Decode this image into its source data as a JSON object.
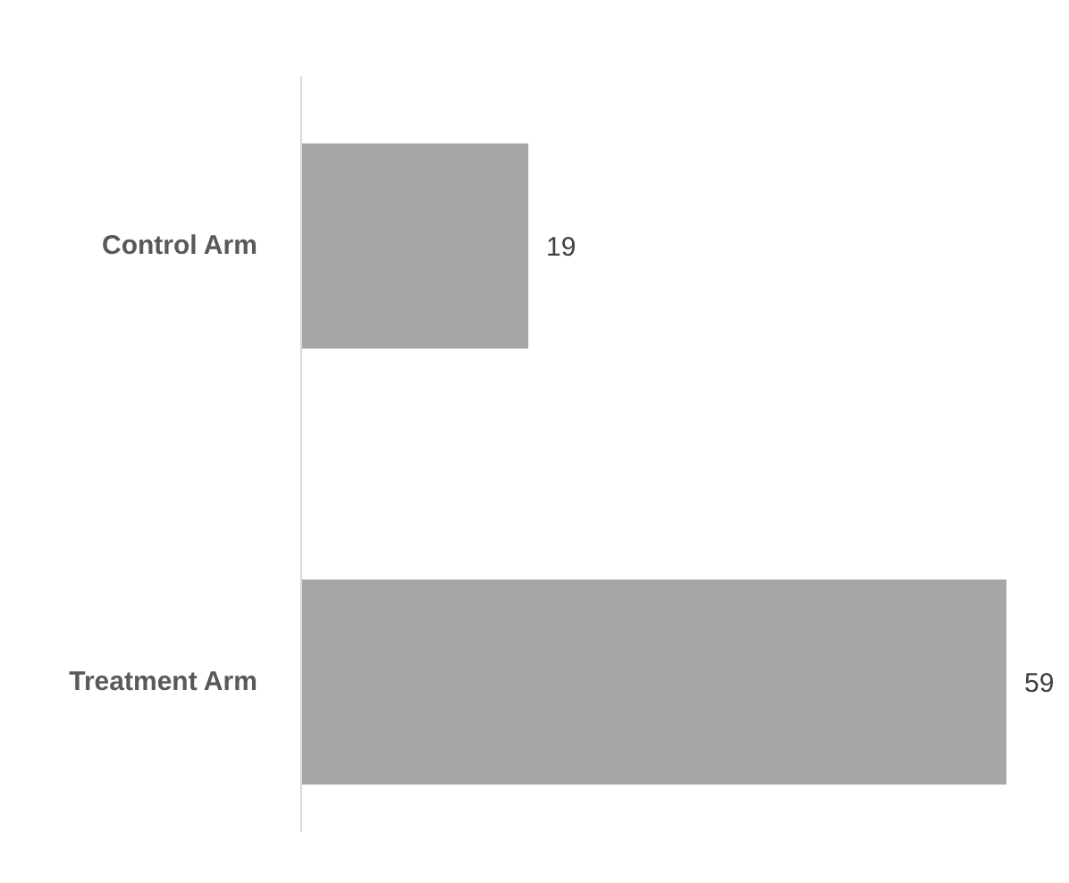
{
  "chart_data": {
    "type": "bar",
    "orientation": "horizontal",
    "categories": [
      "Control Arm",
      "Treatment Arm"
    ],
    "values": [
      19,
      59
    ],
    "color": "#a6a6a6",
    "data_labels": true
  }
}
